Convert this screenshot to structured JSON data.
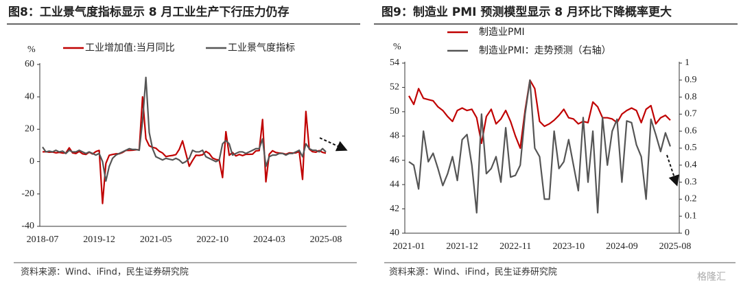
{
  "chart_data": [
    {
      "type": "line",
      "title": "图8：工业景气度指标显示 8 月工业生产下行压力仍存",
      "y_label": "%",
      "categories": [
        "2018-07",
        null,
        null,
        null,
        null,
        null,
        null,
        null,
        null,
        null,
        null,
        null,
        null,
        null,
        null,
        null,
        null,
        "2019-12",
        null,
        null,
        null,
        null,
        null,
        null,
        null,
        null,
        null,
        null,
        null,
        null,
        null,
        null,
        null,
        null,
        "2021-05",
        null,
        null,
        null,
        null,
        null,
        null,
        null,
        null,
        null,
        null,
        null,
        null,
        null,
        null,
        null,
        null,
        "2022-10",
        null,
        null,
        null,
        null,
        null,
        null,
        null,
        null,
        null,
        null,
        null,
        null,
        null,
        null,
        null,
        null,
        "2024-03",
        null,
        null,
        null,
        null,
        null,
        null,
        null,
        null,
        null,
        null,
        null,
        null,
        null,
        null,
        null,
        null,
        "2025-08"
      ],
      "series": [
        {
          "name": "工业增加值:当月同比",
          "color": "#c00000",
          "values": [
            6,
            6.1,
            5.8,
            5.9,
            5.4,
            5.7,
            5.3,
            5.3,
            8.5,
            5.4,
            5,
            6.3,
            4.8,
            4.4,
            5.8,
            4.7,
            6.2,
            6.9,
            -25.9,
            -1.1,
            3.9,
            4.4,
            4.8,
            4.8,
            5.6,
            6.9,
            6.9,
            7,
            7.3,
            7.3,
            40,
            14.1,
            9.8,
            8.8,
            8.3,
            6.4,
            5.3,
            3.1,
            3.5,
            3.8,
            4.3,
            7.5,
            12.8,
            5.0,
            -2.9,
            0.7,
            3.9,
            3.8,
            4.2,
            6.3,
            5.0,
            2.2,
            1.3,
            1.0,
            -9.9,
            18.5,
            3.9,
            5.6,
            3.5,
            4.4,
            3.7,
            4.5,
            4.5,
            4.6,
            6.6,
            6.8,
            26,
            -12.5,
            4.5,
            6.7,
            5.6,
            5.3,
            5.1,
            4.5,
            5.4,
            5.3,
            5.4,
            6.2,
            -11,
            31,
            7.7,
            6.1,
            5.8,
            6.8,
            5.7,
            5.2
          ]
        },
        {
          "name": "工业景气度指标",
          "color": "#555555",
          "values": [
            9,
            6,
            6.5,
            6,
            7,
            6,
            6.5,
            5,
            7,
            6,
            6,
            7,
            6,
            5,
            6,
            5,
            4,
            5,
            0,
            -12,
            -3,
            2,
            4,
            5,
            6,
            7,
            8,
            7.5,
            7.5,
            7,
            25,
            52,
            18,
            8,
            3,
            2,
            1,
            2,
            1.5,
            1,
            2,
            1,
            -1,
            0,
            2,
            7,
            6,
            6,
            7,
            3,
            2,
            1,
            0,
            1,
            11,
            13,
            11,
            4,
            5,
            6,
            6,
            5,
            6,
            7,
            8,
            8,
            14,
            -3,
            3,
            4,
            4,
            5,
            5,
            4,
            5,
            5,
            6,
            7,
            3,
            11,
            8,
            7,
            7,
            6,
            8,
            6
          ]
        }
      ],
      "ylim": [
        -40,
        60
      ],
      "yticks": [
        -40,
        -20,
        0,
        20,
        40,
        60
      ],
      "source": "资料来源：Wind、iFind，民生证券研究院"
    },
    {
      "type": "line",
      "title": "图9：制造业 PMI 预测模型显示 8 月环比下降概率更大",
      "y_label": "%",
      "categories": [
        "2021-01",
        null,
        null,
        null,
        null,
        null,
        null,
        null,
        null,
        null,
        null,
        "2021-12",
        null,
        null,
        null,
        null,
        null,
        null,
        null,
        null,
        null,
        null,
        "2022-11",
        null,
        null,
        null,
        null,
        null,
        null,
        null,
        null,
        null,
        null,
        "2023-10",
        null,
        null,
        null,
        null,
        null,
        null,
        null,
        null,
        null,
        null,
        "2024-09",
        null,
        null,
        null,
        null,
        null,
        null,
        null,
        null,
        null,
        null,
        "2025-08"
      ],
      "series": [
        {
          "name": "制造业PMI",
          "color": "#c00000",
          "values": [
            51.3,
            50.6,
            51.9,
            51.1,
            51.0,
            50.9,
            50.4,
            50.1,
            49.6,
            49.2,
            50.1,
            50.3,
            50.1,
            50.2,
            49.5,
            47.4,
            49.6,
            50.2,
            49.0,
            49.4,
            50.1,
            49.2,
            48.0,
            47.0,
            50.1,
            52.6,
            51.9,
            49.2,
            48.8,
            49.0,
            49.3,
            49.7,
            50.2,
            49.5,
            49.4,
            49.0,
            49.2,
            49.1,
            50.8,
            50.4,
            49.5,
            49.5,
            49.4,
            49.1,
            49.8,
            50.1,
            50.3,
            50.1,
            49.1,
            50.2,
            50.5,
            49.0,
            49.5,
            49.7,
            49.3,
            null
          ]
        },
        {
          "name": "制造业PMI：走势预测（右轴）",
          "color": "#555555",
          "axis": "y2",
          "values": [
            0.42,
            0.4,
            0.26,
            0.6,
            0.42,
            0.47,
            0.38,
            0.28,
            0.35,
            0.45,
            0.31,
            0.55,
            0.58,
            0.4,
            0.12,
            0.7,
            0.35,
            0.38,
            0.45,
            0.3,
            0.62,
            0.33,
            0.34,
            0.4,
            0.7,
            0.9,
            0.5,
            0.45,
            0.2,
            0.2,
            0.6,
            0.38,
            0.42,
            0.55,
            0.4,
            0.25,
            0.68,
            0.3,
            0.6,
            0.12,
            0.68,
            0.4,
            0.6,
            0.67,
            0.3,
            0.66,
            0.65,
            0.52,
            0.45,
            0.2,
            0.67,
            0.58,
            0.48,
            0.59,
            0.51,
            null
          ]
        }
      ],
      "ylim": [
        40,
        54
      ],
      "yticks": [
        40,
        42,
        44,
        46,
        48,
        50,
        52,
        54
      ],
      "y2lim": [
        0,
        1
      ],
      "y2ticks": [
        0,
        0.1,
        0.2,
        0.3,
        0.4,
        0.5,
        0.6,
        0.7,
        0.8,
        0.9,
        1
      ],
      "source": "资料来源：Wind、iFind，民生证券研究院"
    }
  ],
  "watermark": "格隆汇"
}
